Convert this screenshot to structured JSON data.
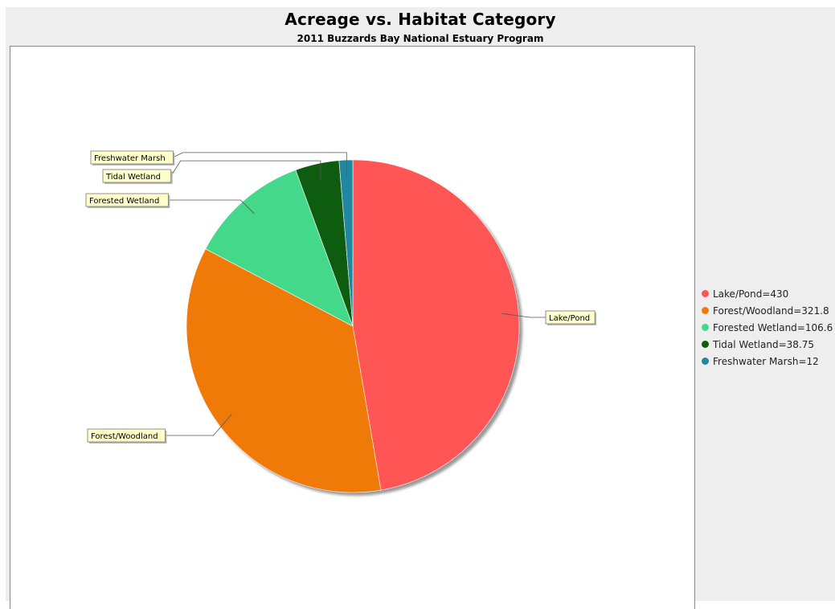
{
  "title": "Acreage vs. Habitat Category",
  "subtitle": "2011 Buzzards Bay National Estuary Program",
  "legend_entries": [
    "Lake/Pond=430",
    "Forest/Woodland=321.8",
    "Forested Wetland=106.6",
    "Tidal Wetland=38.75",
    "Freshwater Marsh=12"
  ],
  "chart_data": {
    "type": "pie",
    "title": "Acreage vs. Habitat Category",
    "subtitle": "2011 Buzzards Bay National Estuary Program",
    "categories": [
      "Lake/Pond",
      "Forest/Woodland",
      "Forested Wetland",
      "Tidal Wetland",
      "Freshwater Marsh"
    ],
    "values": [
      430,
      321.8,
      106.6,
      38.75,
      12
    ],
    "colors": [
      "#ff5555",
      "#f07a08",
      "#44d98a",
      "#0d5c10",
      "#2187a0"
    ],
    "legend_position": "right",
    "start_angle": "12 o'clock",
    "direction": "clockwise",
    "label_background": "#ffffcc"
  }
}
